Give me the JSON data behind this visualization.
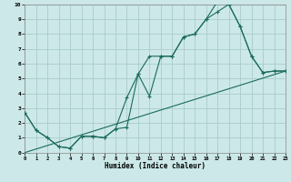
{
  "xlabel": "Humidex (Indice chaleur)",
  "background_color": "#cce8e8",
  "grid_color": "#aacccc",
  "line_color": "#1a6b5a",
  "xlim": [
    0,
    23
  ],
  "ylim": [
    0,
    10
  ],
  "xticks": [
    0,
    1,
    2,
    3,
    4,
    5,
    6,
    7,
    8,
    9,
    10,
    11,
    12,
    13,
    14,
    15,
    16,
    17,
    18,
    19,
    20,
    21,
    22,
    23
  ],
  "yticks": [
    0,
    1,
    2,
    3,
    4,
    5,
    6,
    7,
    8,
    9,
    10
  ],
  "line1_x": [
    0,
    1,
    2,
    3,
    4,
    5,
    6,
    7,
    8,
    9,
    10,
    11,
    12,
    13,
    14,
    15,
    16,
    17,
    18,
    19,
    20,
    21,
    22,
    23
  ],
  "line1_y": [
    2.7,
    1.5,
    1.0,
    0.4,
    0.3,
    1.1,
    1.1,
    1.0,
    1.6,
    3.7,
    5.3,
    6.5,
    6.5,
    6.5,
    7.8,
    8.0,
    9.0,
    10.2,
    10.0,
    8.5,
    6.5,
    5.4,
    5.5,
    5.5
  ],
  "line2_x": [
    0,
    1,
    2,
    3,
    4,
    5,
    6,
    7,
    8,
    9,
    10,
    11,
    12,
    13,
    14,
    15,
    16,
    17,
    18,
    19,
    20,
    21,
    22,
    23
  ],
  "line2_y": [
    2.7,
    1.5,
    1.0,
    0.4,
    0.3,
    1.1,
    1.1,
    1.0,
    1.6,
    1.7,
    5.3,
    3.8,
    6.5,
    6.5,
    7.8,
    8.0,
    9.0,
    9.5,
    10.0,
    8.5,
    6.5,
    5.4,
    5.5,
    5.5
  ],
  "line3_x": [
    0,
    23
  ],
  "line3_y": [
    0.0,
    5.5
  ]
}
